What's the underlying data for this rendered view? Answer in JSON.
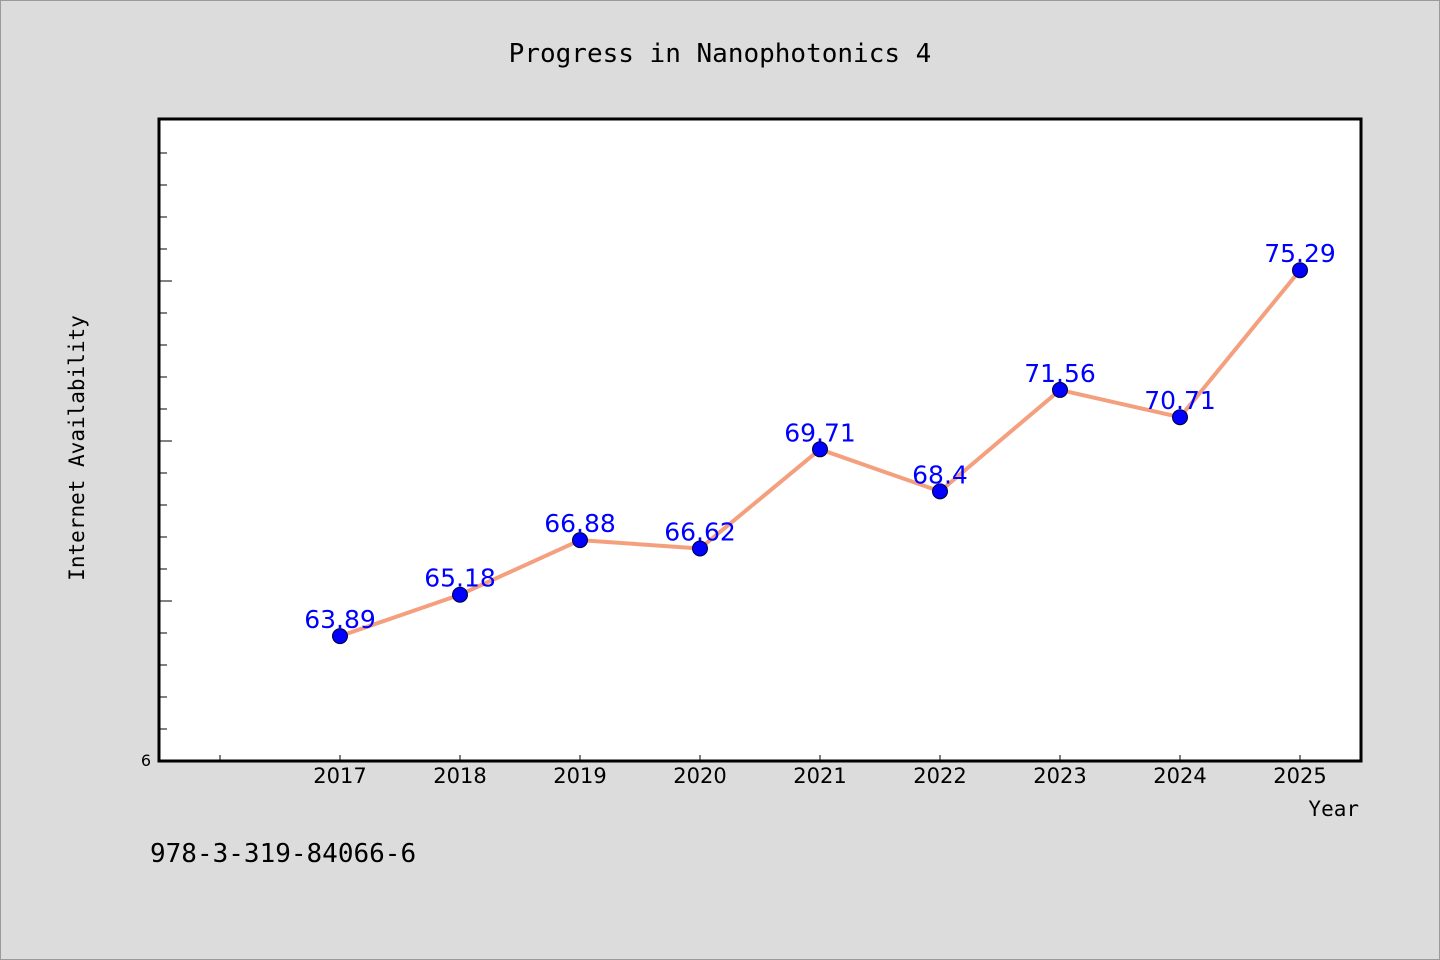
{
  "chart_data": {
    "type": "line",
    "title": "Progress in Nanophotonics 4",
    "xlabel": "Year",
    "ylabel": "Internet Availability",
    "categories": [
      "2017",
      "2018",
      "2019",
      "2020",
      "2021",
      "2022",
      "2023",
      "2024",
      "2025"
    ],
    "series": [
      {
        "values": [
          63.89,
          65.18,
          66.88,
          66.62,
          69.71,
          68.4,
          71.56,
          70.71,
          75.29
        ],
        "data_labels": [
          "63.89",
          "65.18",
          "66.88",
          "66.62",
          "69.71",
          "68.4",
          "71.56",
          "70.71",
          "75.29"
        ],
        "line_color": "#f4a07e",
        "marker_color": "#0000ff"
      }
    ],
    "y_tick_label": "6",
    "ylim": [
      60,
      80
    ],
    "grid": false,
    "legend": "none"
  },
  "footer_text": "978-3-319-84066-6",
  "colors": {
    "background": "#dcdcdc",
    "plot_area": "#ffffff",
    "line": "#f4a07e",
    "marker": "#0000ff",
    "data_label": "#0000ff"
  }
}
